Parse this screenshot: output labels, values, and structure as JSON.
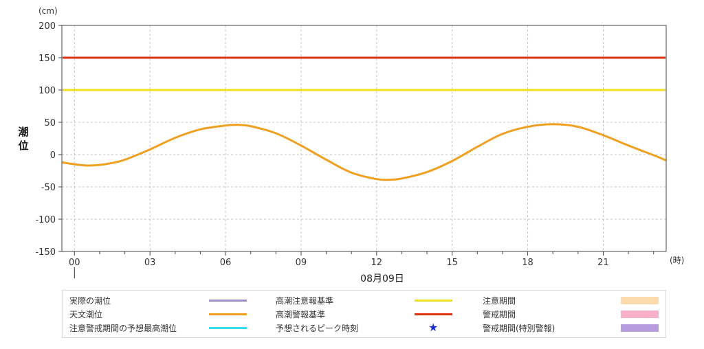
{
  "chart_data": {
    "type": "line",
    "y_unit": "(cm)",
    "ylabel": "潮位",
    "x_unit": "(時)",
    "date_label": "08月09日",
    "ylim": [
      -150,
      200
    ],
    "y_ticks": [
      200,
      150,
      100,
      50,
      0,
      -50,
      -100,
      -150
    ],
    "xlim": [
      -0.5,
      23.5
    ],
    "x_ticks": [
      {
        "value": 0,
        "label": "00"
      },
      {
        "value": 3,
        "label": "03"
      },
      {
        "value": 6,
        "label": "06"
      },
      {
        "value": 9,
        "label": "09"
      },
      {
        "value": 12,
        "label": "12"
      },
      {
        "value": 15,
        "label": "15"
      },
      {
        "value": 18,
        "label": "18"
      },
      {
        "value": 21,
        "label": "21"
      }
    ],
    "grid": true,
    "thresholds": [
      {
        "name": "高潮警報基準",
        "value": 150,
        "color": "#dd3311"
      },
      {
        "name": "高潮注意報基準",
        "value": 100,
        "color": "#f0e020"
      }
    ],
    "series": [
      {
        "name": "天文潮位",
        "color": "#f0a020",
        "x": [
          -0.5,
          0,
          0.5,
          1,
          1.5,
          2,
          3,
          4,
          5,
          6,
          6.5,
          7,
          8,
          9,
          10,
          11,
          12,
          12.5,
          13,
          14,
          15,
          16,
          17,
          18,
          19,
          20,
          21,
          22,
          23,
          23.5
        ],
        "y": [
          -12,
          -15,
          -17,
          -16,
          -13,
          -8,
          8,
          26,
          39,
          45,
          46,
          44,
          33,
          14,
          -8,
          -28,
          -38,
          -39,
          -37,
          -27,
          -10,
          12,
          32,
          43,
          47,
          43,
          30,
          14,
          -1,
          -9
        ]
      }
    ]
  },
  "legend": [
    {
      "label": "実際の潮位",
      "kind": "line",
      "color": "#9f8fc0"
    },
    {
      "label": "天文潮位",
      "kind": "line",
      "color": "#f0a020"
    },
    {
      "label": "注意警戒期間の予想最高潮位",
      "kind": "line",
      "color": "#33ddee"
    },
    {
      "label": "高潮注意報基準",
      "kind": "line",
      "color": "#f0e020"
    },
    {
      "label": "高潮警報基準",
      "kind": "line",
      "color": "#dd3311"
    },
    {
      "label": "予想されるピーク時刻",
      "kind": "star",
      "color": "#1a2fcc",
      "glyph": "★"
    },
    {
      "label": "注意期間",
      "kind": "box",
      "color": "#fcdcac"
    },
    {
      "label": "警戒期間",
      "kind": "box",
      "color": "#f8b0c8"
    },
    {
      "label": "警戒期間(特別警報)",
      "kind": "box",
      "color": "#b89ce0"
    }
  ]
}
